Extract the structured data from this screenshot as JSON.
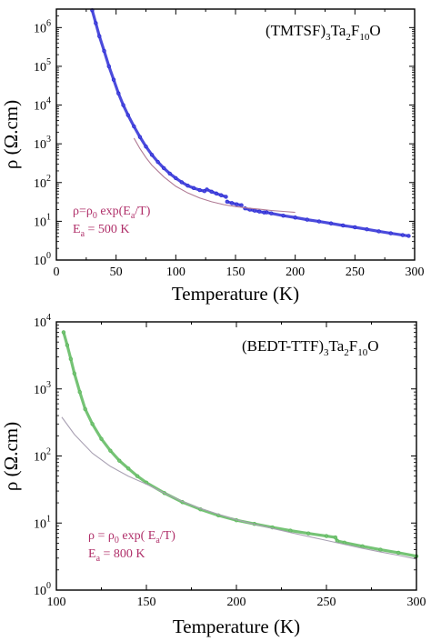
{
  "chart_data": [
    {
      "type": "scatter",
      "compound": {
        "base": "(TMTSF)",
        "sub1": "3",
        "mid": "Ta",
        "sub2": "2",
        "mid2": "F",
        "sub3": "10",
        "tail": "O"
      },
      "xlabel": "Temperature (K)",
      "ylabel": "ρ (Ω.cm)",
      "xlim": [
        0,
        300
      ],
      "ylim": [
        1,
        3000000
      ],
      "yscale": "log",
      "xticks": [
        0,
        50,
        100,
        150,
        200,
        250,
        300
      ],
      "yticks": [
        {
          "value": 1,
          "base": "10",
          "exp": "0"
        },
        {
          "value": 10,
          "base": "10",
          "exp": "1"
        },
        {
          "value": 100,
          "base": "10",
          "exp": "2"
        },
        {
          "value": 1000,
          "base": "10",
          "exp": "3"
        },
        {
          "value": 10000,
          "base": "10",
          "exp": "4"
        },
        {
          "value": 100000,
          "base": "10",
          "exp": "5"
        },
        {
          "value": 1000000,
          "base": "10",
          "exp": "6"
        }
      ],
      "annotation": {
        "line1": {
          "a": "ρ=ρ",
          "s1": "0",
          "b": " exp(E",
          "s2": "a",
          "c": "/T)"
        },
        "line2": {
          "a": "E",
          "s1": "a",
          "b": " = 500 K"
        }
      },
      "series": [
        {
          "role": "data",
          "color": "#2b2bd6",
          "segments": [
            {
              "x": [
                30,
                33,
                36,
                40,
                44,
                48,
                52,
                56,
                60,
                65,
                70,
                75,
                80,
                85,
                90,
                95,
                100,
                105,
                110,
                115,
                120,
                124
              ],
              "y": [
                2800000,
                1300000,
                600000,
                250000,
                100000,
                45000,
                20000,
                10000,
                5500,
                2800,
                1500,
                850,
                520,
                340,
                235,
                170,
                130,
                102,
                83,
                72,
                64,
                60
              ]
            },
            {
              "x": [
                126,
                130,
                134,
                138,
                142
              ],
              "y": [
                66,
                58,
                52,
                47,
                43
              ]
            },
            {
              "x": [
                143,
                147,
                151,
                155
              ],
              "y": [
                32,
                29.5,
                27.5,
                26
              ]
            },
            {
              "x": [
                158,
                162,
                166,
                170,
                174
              ],
              "y": [
                21.5,
                20,
                18.8,
                17.8,
                16.9
              ]
            },
            {
              "x": [
                176,
                180,
                190,
                200,
                210,
                220,
                230,
                240,
                250,
                260,
                270,
                280,
                290,
                295
              ],
              "y": [
                17,
                16,
                14,
                12.5,
                11,
                9.9,
                8.8,
                7.8,
                7,
                6.2,
                5.5,
                4.9,
                4.4,
                4.2
              ]
            }
          ]
        },
        {
          "role": "fit",
          "color": "#b07a94",
          "x": [
            65,
            70,
            75,
            80,
            90,
            100,
            110,
            120,
            130,
            140,
            150,
            160,
            170,
            180,
            190,
            200
          ],
          "y": [
            1400,
            750,
            440,
            280,
            140,
            80,
            54,
            40,
            32,
            27,
            24,
            22,
            20.5,
            19,
            18,
            17
          ]
        }
      ]
    },
    {
      "type": "scatter",
      "compound": {
        "base": "(BEDT-TTF)",
        "sub1": "3",
        "mid": "Ta",
        "sub2": "2",
        "mid2": "F",
        "sub3": "10",
        "tail": "O"
      },
      "xlabel": "Temperature (K)",
      "ylabel": "ρ (Ω.cm)",
      "xlim": [
        100,
        300
      ],
      "ylim": [
        1,
        10000
      ],
      "yscale": "log",
      "xticks": [
        100,
        150,
        200,
        250,
        300
      ],
      "yticks": [
        {
          "value": 1,
          "base": "10",
          "exp": "0"
        },
        {
          "value": 10,
          "base": "10",
          "exp": "1"
        },
        {
          "value": 100,
          "base": "10",
          "exp": "2"
        },
        {
          "value": 1000,
          "base": "10",
          "exp": "3"
        },
        {
          "value": 10000,
          "base": "10",
          "exp": "4"
        }
      ],
      "annotation": {
        "line1": {
          "a": "ρ = ρ",
          "s1": "0",
          "b": " exp( E",
          "s2": "a",
          "c": "/T)"
        },
        "line2": {
          "a": "E",
          "s1": "a",
          "b": " =  800 K"
        }
      },
      "series": [
        {
          "role": "data",
          "color": "#5db85d",
          "segments": [
            {
              "x": [
                104,
                106,
                108,
                110,
                113,
                116,
                120,
                125,
                130,
                135,
                140,
                145,
                150,
                160,
                170,
                180,
                190,
                200,
                210,
                220,
                230,
                240,
                250,
                255,
                256,
                260,
                270,
                280,
                290,
                300
              ],
              "y": [
                7000,
                4500,
                2800,
                1700,
                900,
                500,
                300,
                180,
                120,
                85,
                65,
                50,
                40,
                28,
                20.5,
                16,
                13,
                11,
                9.7,
                8.6,
                7.7,
                7,
                6.4,
                6.1,
                5.4,
                5.1,
                4.5,
                4,
                3.6,
                3.2
              ]
            }
          ]
        },
        {
          "role": "fit",
          "color": "#a9a1b3",
          "x": [
            103,
            110,
            120,
            130,
            140,
            150,
            160,
            170,
            180,
            190,
            200,
            210,
            220,
            230,
            240,
            250,
            260,
            270,
            280,
            290,
            300
          ],
          "y": [
            380,
            210,
            110,
            70,
            50,
            38,
            28,
            21,
            16.5,
            13.5,
            11.2,
            9.6,
            8.3,
            7.2,
            6.3,
            5.5,
            4.8,
            4.2,
            3.7,
            3.3,
            2.9
          ]
        }
      ]
    }
  ]
}
